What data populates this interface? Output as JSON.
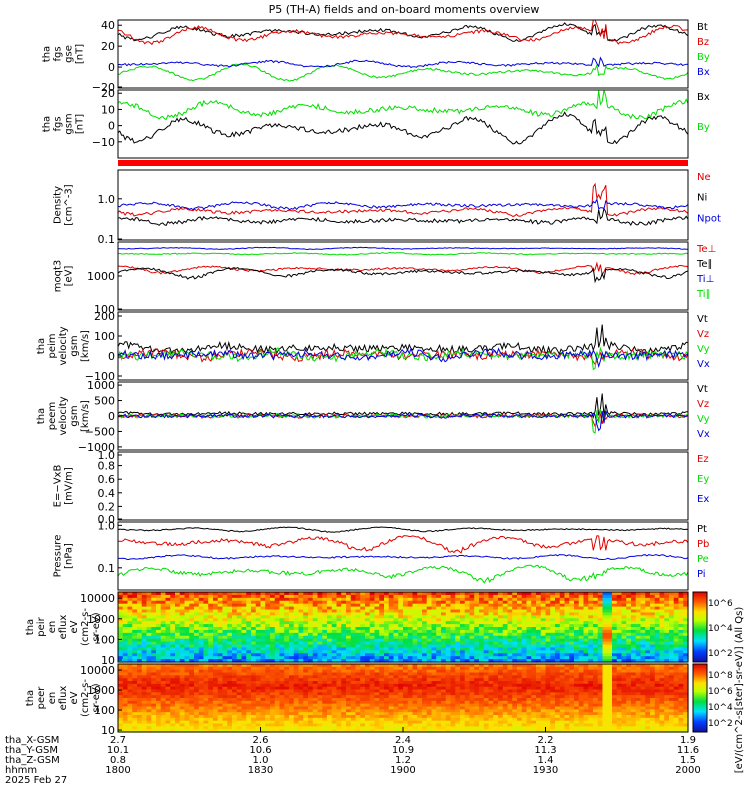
{
  "title": "P5 (TH-A) fields and on-board moments overview",
  "date_label": "2025 Feb 27",
  "orbit_rows": [
    {
      "label": "tha_X-GSM",
      "values": [
        "2.7",
        "2.6",
        "2.4",
        "2.2",
        "1.9"
      ]
    },
    {
      "label": "tha_Y-GSM",
      "values": [
        "10.1",
        "10.6",
        "10.9",
        "11.3",
        "11.6"
      ]
    },
    {
      "label": "tha_Z-GSM",
      "values": [
        "0.8",
        "1.0",
        "1.2",
        "1.4",
        "1.5"
      ]
    },
    {
      "label": "hhmm",
      "values": [
        "1800",
        "1830",
        "1900",
        "1930",
        "2000"
      ]
    }
  ],
  "colors": {
    "black": "#000000",
    "red": "#e00000",
    "green": "#00dd00",
    "blue": "#0000dd",
    "bar": "#ff0000"
  },
  "colorbar": {
    "unit_label": "[eV/(cm^2-s[ster]-sr-eV)] (All Qs)",
    "upper_ticks": [
      "10^6",
      "10^4",
      "10^2"
    ],
    "lower_ticks": [
      "10^8",
      "10^6",
      "10^4",
      "10^2"
    ],
    "lower_top_tick": "10^8"
  },
  "chart_data": [
    {
      "id": "fgs_gse",
      "type": "line",
      "ylabel": [
        "tha",
        "fgs",
        "gse",
        "[nT]"
      ],
      "ylim": [
        -20,
        45
      ],
      "yticks": [
        "40",
        "20",
        "0",
        "−20"
      ],
      "series": [
        {
          "name": "Bt",
          "color": "black"
        },
        {
          "name": "Bz",
          "color": "red"
        },
        {
          "name": "By",
          "color": "green"
        },
        {
          "name": "Bx",
          "color": "blue"
        }
      ]
    },
    {
      "id": "fgs_gsm",
      "type": "line",
      "ylabel": [
        "tha",
        "fgs",
        "gsm",
        "[nT]"
      ],
      "ylim": [
        -20,
        22
      ],
      "yticks": [
        "20",
        "10",
        "0",
        "−10"
      ],
      "series": [
        {
          "name": "Bx",
          "color": "black"
        },
        {
          "name": "By",
          "color": "green"
        }
      ]
    },
    {
      "id": "density",
      "type": "line",
      "ylabel": [
        "Density",
        "[cm^-3]"
      ],
      "log": true,
      "ylim": [
        0.1,
        5
      ],
      "yticks": [
        "1.0",
        "0.1"
      ],
      "series": [
        {
          "name": "Ne",
          "color": "red"
        },
        {
          "name": "Ni",
          "color": "black"
        },
        {
          "name": "Npot",
          "color": "blue"
        }
      ]
    },
    {
      "id": "temperature",
      "type": "line",
      "ylabel": [
        "moqt3",
        "[eV]"
      ],
      "log": true,
      "ylim": [
        100,
        10000
      ],
      "yticks": [
        "1000",
        "100"
      ],
      "series": [
        {
          "name": "Te⊥",
          "color": "red"
        },
        {
          "name": "Te∥",
          "color": "black"
        },
        {
          "name": "Ti⊥",
          "color": "blue"
        },
        {
          "name": "Ti∥",
          "color": "green"
        }
      ]
    },
    {
      "id": "peim_velocity",
      "type": "line",
      "ylabel": [
        "tha",
        "peim",
        "velocity",
        "gsm",
        "[km/s]"
      ],
      "ylim": [
        -120,
        220
      ],
      "yticks": [
        "200",
        "100",
        "0",
        "−100"
      ],
      "series": [
        {
          "name": "Vt",
          "color": "black"
        },
        {
          "name": "Vz",
          "color": "red"
        },
        {
          "name": "Vy",
          "color": "green"
        },
        {
          "name": "Vx",
          "color": "blue"
        }
      ]
    },
    {
      "id": "peem_velocity",
      "type": "line",
      "ylabel": [
        "tha",
        "peem",
        "velocity",
        "gsm",
        "[km/s]"
      ],
      "ylim": [
        -1100,
        1100
      ],
      "yticks": [
        "1000",
        "500",
        "0",
        "−500",
        "−1000"
      ],
      "series": [
        {
          "name": "Vt",
          "color": "black"
        },
        {
          "name": "Vz",
          "color": "red"
        },
        {
          "name": "Vy",
          "color": "green"
        },
        {
          "name": "Vx",
          "color": "blue"
        }
      ]
    },
    {
      "id": "efield",
      "type": "line",
      "ylabel": [
        "E=−VxB",
        "[mV/m]"
      ],
      "ylim": [
        0,
        1
      ],
      "yticks": [
        "1.0",
        "0.8",
        "0.6",
        "0.4",
        "0.2",
        "0.0"
      ],
      "series": [
        {
          "name": "Ez",
          "color": "red"
        },
        {
          "name": "Ey",
          "color": "green"
        },
        {
          "name": "Ex",
          "color": "blue"
        }
      ]
    },
    {
      "id": "pressure",
      "type": "line",
      "ylabel": [
        "Pressure",
        "[nPa]"
      ],
      "log": true,
      "ylim": [
        0.03,
        1.2
      ],
      "yticks": [
        "1.0",
        "0.1"
      ],
      "series": [
        {
          "name": "Pt",
          "color": "black"
        },
        {
          "name": "Pb",
          "color": "red"
        },
        {
          "name": "Pe",
          "color": "green"
        },
        {
          "name": "Pi",
          "color": "blue"
        }
      ]
    },
    {
      "id": "peir_spectrogram",
      "type": "heatmap",
      "ylabel": [
        "tha",
        "peir",
        "en",
        "eflux",
        "eV",
        "(cm2-s-",
        "sr-eV)"
      ],
      "log": true,
      "ylim": [
        8,
        20000
      ],
      "yticks": [
        "10000",
        "1000",
        "100",
        "10"
      ]
    },
    {
      "id": "peer_spectrogram",
      "type": "heatmap",
      "ylabel": [
        "tha",
        "peer",
        "en",
        "eflux",
        "eV",
        "(cm2-s-",
        "sr-eV)"
      ],
      "log": true,
      "ylim": [
        8,
        20000
      ],
      "yticks": [
        "10000",
        "1000",
        "100",
        "10"
      ]
    }
  ]
}
